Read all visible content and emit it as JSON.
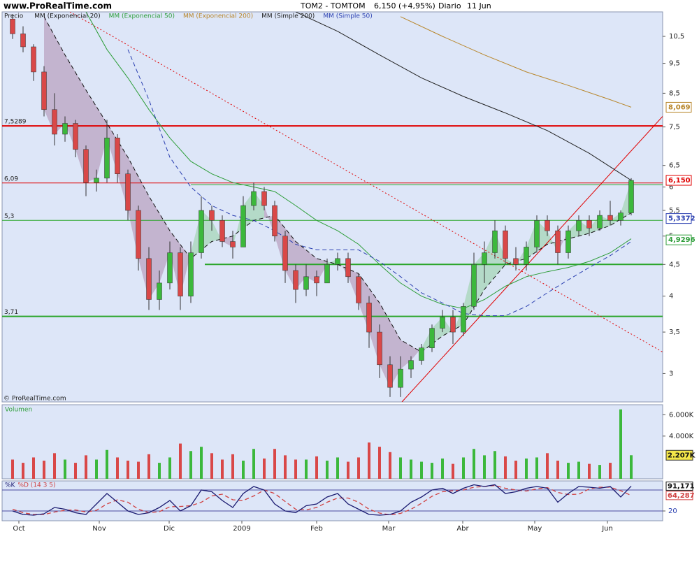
{
  "header": {
    "site": "www.ProRealTime.com",
    "instrument": "TOM2 - TOMTOM",
    "last": "6,150 (+4,95%)",
    "period": "Diario",
    "date": "11 Jun"
  },
  "watermark": "© ProRealTime.com",
  "chart_data": [
    {
      "type": "candlestick",
      "label": "Precio",
      "log": true,
      "xlim": [
        -1,
        188
      ],
      "ylim": [
        2.7,
        11.5
      ],
      "yticks": [
        3,
        {
          "value": 3.5,
          "label": "3,5"
        },
        4,
        {
          "value": 4.5,
          "label": "4,5"
        },
        5,
        {
          "value": 5.5,
          "label": "5,5"
        },
        6,
        {
          "value": 6.5,
          "label": "6,5"
        },
        {
          "value": 7.5,
          "label": "7,5"
        },
        {
          "value": 8.5,
          "label": "8,5"
        },
        {
          "value": 9.5,
          "label": "9,5"
        },
        {
          "value": 10.5,
          "label": "10,5"
        }
      ],
      "up_color": "#3cb83c",
      "down_color": "#d94848",
      "x": [
        2,
        5,
        8,
        11,
        14,
        17,
        20,
        23,
        26,
        29,
        32,
        35,
        38,
        41,
        44,
        47,
        50,
        53,
        56,
        59,
        62,
        65,
        68,
        71,
        74,
        77,
        80,
        83,
        86,
        89,
        92,
        95,
        98,
        101,
        104,
        107,
        110,
        113,
        116,
        119,
        122,
        125,
        128,
        131,
        134,
        137,
        140,
        143,
        146,
        149,
        152,
        155,
        158,
        161,
        164,
        167,
        170,
        173,
        176,
        179
      ],
      "open": [
        11.2,
        10.6,
        10.1,
        9.2,
        8.0,
        7.3,
        7.6,
        6.9,
        6.1,
        6.2,
        7.2,
        6.3,
        5.5,
        4.6,
        3.95,
        4.2,
        4.7,
        4.0,
        4.7,
        5.5,
        5.3,
        4.9,
        4.8,
        5.6,
        5.9,
        5.6,
        5.0,
        4.4,
        4.1,
        4.3,
        4.2,
        4.5,
        4.6,
        4.3,
        3.9,
        3.5,
        3.1,
        2.85,
        3.05,
        3.15,
        3.3,
        3.55,
        3.7,
        3.5,
        3.85,
        4.5,
        4.7,
        5.1,
        4.6,
        4.5,
        4.8,
        5.3,
        5.1,
        4.7,
        5.1,
        5.3,
        5.15,
        5.4,
        5.3,
        5.45
      ],
      "high": [
        11.4,
        10.9,
        10.2,
        9.4,
        8.5,
        7.8,
        7.7,
        7.0,
        6.4,
        7.7,
        7.3,
        6.4,
        5.6,
        4.8,
        4.4,
        4.9,
        4.8,
        4.9,
        5.8,
        5.6,
        5.4,
        5.1,
        5.8,
        6.1,
        6.0,
        5.7,
        5.1,
        4.5,
        4.5,
        4.4,
        4.6,
        4.7,
        4.7,
        4.35,
        4.0,
        3.6,
        3.2,
        3.2,
        3.2,
        3.35,
        3.6,
        3.8,
        3.8,
        3.9,
        4.7,
        4.9,
        5.3,
        5.2,
        4.8,
        4.9,
        5.4,
        5.4,
        5.2,
        5.2,
        5.4,
        5.4,
        5.5,
        5.7,
        5.5,
        6.2
      ],
      "low": [
        10.4,
        9.9,
        8.9,
        7.8,
        7.0,
        7.1,
        6.7,
        5.8,
        5.9,
        6.1,
        6.1,
        5.3,
        4.4,
        3.8,
        3.8,
        4.1,
        3.8,
        3.9,
        4.6,
        5.1,
        4.8,
        4.6,
        4.8,
        5.5,
        5.5,
        4.9,
        4.2,
        3.9,
        4.0,
        4.0,
        4.2,
        4.4,
        4.2,
        3.8,
        3.3,
        2.95,
        2.75,
        2.75,
        2.95,
        3.1,
        3.25,
        3.5,
        3.35,
        3.45,
        3.8,
        4.2,
        4.6,
        4.5,
        4.4,
        4.4,
        4.7,
        5.0,
        4.5,
        4.6,
        5.0,
        5.0,
        5.1,
        5.2,
        5.2,
        5.4
      ],
      "close": [
        10.6,
        10.1,
        9.2,
        8.0,
        7.3,
        7.6,
        6.9,
        6.1,
        6.2,
        7.2,
        6.3,
        5.5,
        4.6,
        3.95,
        4.2,
        4.7,
        4.0,
        4.7,
        5.5,
        5.3,
        4.9,
        4.8,
        5.6,
        5.9,
        5.6,
        5.0,
        4.4,
        4.1,
        4.3,
        4.2,
        4.5,
        4.6,
        4.3,
        3.9,
        3.5,
        3.1,
        2.85,
        3.05,
        3.15,
        3.3,
        3.55,
        3.7,
        3.5,
        3.85,
        4.5,
        4.7,
        5.1,
        4.6,
        4.5,
        4.8,
        5.3,
        5.1,
        4.7,
        5.1,
        5.3,
        5.15,
        5.4,
        5.3,
        5.45,
        6.15
      ],
      "series": [
        {
          "name": "MM (Exponencial 20)",
          "color": "#111111",
          "dash": true,
          "fill_below": "#b9a3c2",
          "fill_above": "#a6d6b8",
          "x": [
            11,
            17,
            23,
            29,
            35,
            41,
            47,
            53,
            59,
            65,
            71,
            77,
            83,
            89,
            95,
            101,
            107,
            113,
            119,
            125,
            131,
            137,
            143,
            149,
            155,
            161,
            167,
            173,
            179
          ],
          "values": [
            11.3,
            9.8,
            8.6,
            7.6,
            6.7,
            5.8,
            5.1,
            4.6,
            4.9,
            5.0,
            5.3,
            5.4,
            4.9,
            4.6,
            4.5,
            4.35,
            3.9,
            3.4,
            3.25,
            3.45,
            3.6,
            4.1,
            4.5,
            4.6,
            4.85,
            4.95,
            5.05,
            5.2,
            5.45
          ]
        },
        {
          "name": "MM (Exponencial 50)",
          "color": "#2e9e3a",
          "dash": false,
          "x": [
            23,
            29,
            35,
            41,
            47,
            53,
            59,
            65,
            71,
            77,
            83,
            89,
            95,
            101,
            107,
            113,
            119,
            125,
            131,
            137,
            143,
            149,
            155,
            161,
            167,
            173,
            179
          ],
          "values": [
            11.5,
            10.0,
            9.0,
            8.0,
            7.2,
            6.6,
            6.3,
            6.1,
            6.0,
            5.9,
            5.6,
            5.3,
            5.1,
            4.85,
            4.5,
            4.2,
            4.0,
            3.88,
            3.82,
            3.95,
            4.15,
            4.3,
            4.38,
            4.45,
            4.55,
            4.7,
            4.95
          ]
        },
        {
          "name": "MM (Exponencial 200)",
          "color": "#b8862b",
          "dash": false,
          "x": [
            113,
            125,
            137,
            149,
            161,
            173,
            179
          ],
          "values": [
            11.3,
            10.5,
            9.8,
            9.2,
            8.75,
            8.3,
            8.07
          ]
        },
        {
          "name": "MM (Simple 200)",
          "color": "#222222",
          "dash": false,
          "x": [
            83,
            95,
            107,
            119,
            131,
            143,
            155,
            167,
            179
          ],
          "values": [
            11.5,
            10.7,
            9.8,
            9.0,
            8.4,
            7.9,
            7.4,
            6.8,
            6.15
          ]
        },
        {
          "name": "MM (Simple 50)",
          "color": "#2a3fb0",
          "dash": true,
          "x": [
            35,
            41,
            47,
            53,
            59,
            65,
            71,
            77,
            83,
            89,
            95,
            101,
            107,
            113,
            119,
            125,
            131,
            137,
            143,
            149,
            155,
            161,
            167,
            173,
            179
          ],
          "values": [
            10.0,
            8.3,
            6.7,
            6.0,
            5.6,
            5.4,
            5.3,
            5.1,
            4.85,
            4.75,
            4.75,
            4.75,
            4.55,
            4.3,
            4.05,
            3.9,
            3.75,
            3.72,
            3.72,
            3.85,
            4.05,
            4.25,
            4.45,
            4.65,
            4.9
          ]
        }
      ],
      "levels": [
        {
          "value": 7.5289,
          "label": "7,5289",
          "color": "#e00000",
          "width": 2,
          "from": -1
        },
        {
          "value": 6.09,
          "label": "6,09",
          "color": "#e00000",
          "width": 1,
          "from": -1
        },
        {
          "value": 5.3,
          "label": "5,3",
          "color": "#2aa52a",
          "width": 1,
          "from": -1
        },
        {
          "value": 3.71,
          "label": "3,71",
          "color": "#2aa52a",
          "width": 2,
          "from": -1
        },
        {
          "value": 4.5,
          "color": "#2aa52a",
          "width": 2,
          "from": 57
        },
        {
          "value": 6.05,
          "color": "#2aa52a",
          "width": 1,
          "from": 53
        }
      ],
      "trendlines": [
        {
          "x": [
            18.4,
            188
          ],
          "y": [
            11.5,
            3.25
          ],
          "color": "#e00000",
          "dash": true
        },
        {
          "x": [
            113.4,
            188
          ],
          "y": [
            2.7,
            7.8
          ],
          "color": "#e00000",
          "dash": false
        }
      ],
      "tags": [
        {
          "value": 8.069,
          "label": "8,069",
          "color": "#b8862b"
        },
        {
          "value": 6.15,
          "label": "6,150",
          "color": "#e00000"
        },
        {
          "value": 5.3372,
          "label": "5,3372",
          "color": "#2a3fb0"
        },
        {
          "value": 4.9296,
          "label": "4,9296",
          "color": "#2e9e3a"
        }
      ]
    },
    {
      "type": "bar",
      "label": "Volumen",
      "xlim": [
        -1,
        188
      ],
      "ylim": [
        0,
        6870
      ],
      "yticks": [
        {
          "value": 4000,
          "label": "4.000K"
        },
        {
          "value": 6000,
          "label": "6.000K"
        }
      ],
      "x": [
        2,
        5,
        8,
        11,
        14,
        17,
        20,
        23,
        26,
        29,
        32,
        35,
        38,
        41,
        44,
        47,
        50,
        53,
        56,
        59,
        62,
        65,
        68,
        71,
        74,
        77,
        80,
        83,
        86,
        89,
        92,
        95,
        98,
        101,
        104,
        107,
        110,
        113,
        116,
        119,
        122,
        125,
        128,
        131,
        134,
        137,
        140,
        143,
        146,
        149,
        152,
        155,
        158,
        161,
        164,
        167,
        170,
        173,
        176,
        179
      ],
      "values": [
        1800,
        1500,
        2000,
        1700,
        2400,
        1800,
        1500,
        2200,
        1800,
        2700,
        2000,
        1700,
        1600,
        2300,
        1500,
        2000,
        3300,
        2600,
        3000,
        2400,
        1800,
        2300,
        1700,
        2800,
        1900,
        2800,
        2200,
        1800,
        1800,
        2100,
        1700,
        2000,
        1600,
        2000,
        3400,
        3000,
        2500,
        2000,
        1800,
        1600,
        1500,
        1900,
        1400,
        2000,
        2800,
        2200,
        2600,
        2100,
        1700,
        1900,
        2000,
        2400,
        1700,
        1500,
        1600,
        1400,
        1300,
        1500,
        6500,
        2207
      ],
      "tag": {
        "value": 2207,
        "label": "2.207K",
        "color": "#111111"
      }
    },
    {
      "type": "line",
      "log": false,
      "xlim": [
        -1,
        188
      ],
      "ylim": [
        -8,
        106
      ],
      "yticks": [
        20
      ],
      "levels": [
        80
      ],
      "xticks": [
        {
          "value": 3.8,
          "label": "Oct"
        },
        {
          "value": 26.8,
          "label": "Nov"
        },
        {
          "value": 46.8,
          "label": "Dic"
        },
        {
          "value": 67.6,
          "label": "2009"
        },
        {
          "value": 89,
          "label": "Feb"
        },
        {
          "value": 109.6,
          "label": "Mar"
        },
        {
          "value": 130.8,
          "label": "Abr"
        },
        {
          "value": 151.4,
          "label": "May"
        },
        {
          "value": 172.2,
          "label": "Jun"
        }
      ],
      "x": [
        2,
        5,
        8,
        11,
        14,
        17,
        20,
        23,
        26,
        29,
        32,
        35,
        38,
        41,
        44,
        47,
        50,
        53,
        56,
        59,
        62,
        65,
        68,
        71,
        74,
        77,
        80,
        83,
        86,
        89,
        92,
        95,
        98,
        101,
        104,
        107,
        110,
        113,
        116,
        119,
        122,
        125,
        128,
        131,
        134,
        137,
        140,
        143,
        146,
        149,
        152,
        155,
        158,
        161,
        164,
        167,
        170,
        173,
        176,
        179
      ],
      "series": [
        {
          "name": "%K",
          "color": "#1a1a70",
          "dash": false,
          "values": [
            20,
            10,
            8,
            12,
            30,
            25,
            15,
            10,
            40,
            70,
            45,
            20,
            10,
            15,
            30,
            50,
            20,
            35,
            80,
            75,
            50,
            30,
            70,
            90,
            80,
            40,
            20,
            15,
            35,
            40,
            60,
            70,
            40,
            25,
            10,
            8,
            10,
            20,
            45,
            60,
            80,
            85,
            70,
            85,
            95,
            90,
            95,
            70,
            75,
            85,
            90,
            85,
            45,
            70,
            90,
            88,
            85,
            90,
            60,
            91.171
          ]
        },
        {
          "name": "%D (14 3 5)",
          "color": "#d04040",
          "dash": true,
          "values": [
            25,
            15,
            10,
            10,
            17,
            22,
            23,
            17,
            22,
            40,
            52,
            45,
            25,
            15,
            18,
            32,
            33,
            35,
            45,
            63,
            68,
            52,
            50,
            63,
            80,
            70,
            47,
            25,
            23,
            30,
            45,
            57,
            57,
            45,
            25,
            14,
            9,
            13,
            25,
            42,
            62,
            75,
            78,
            80,
            88,
            90,
            93,
            85,
            80,
            77,
            83,
            87,
            73,
            67,
            68,
            83,
            88,
            88,
            78,
            64.287
          ]
        }
      ],
      "tags": [
        {
          "value": 91.171,
          "label": "91,171",
          "color": "#111111"
        },
        {
          "value": 64.287,
          "label": "64,287",
          "color": "#d04040"
        }
      ]
    }
  ]
}
